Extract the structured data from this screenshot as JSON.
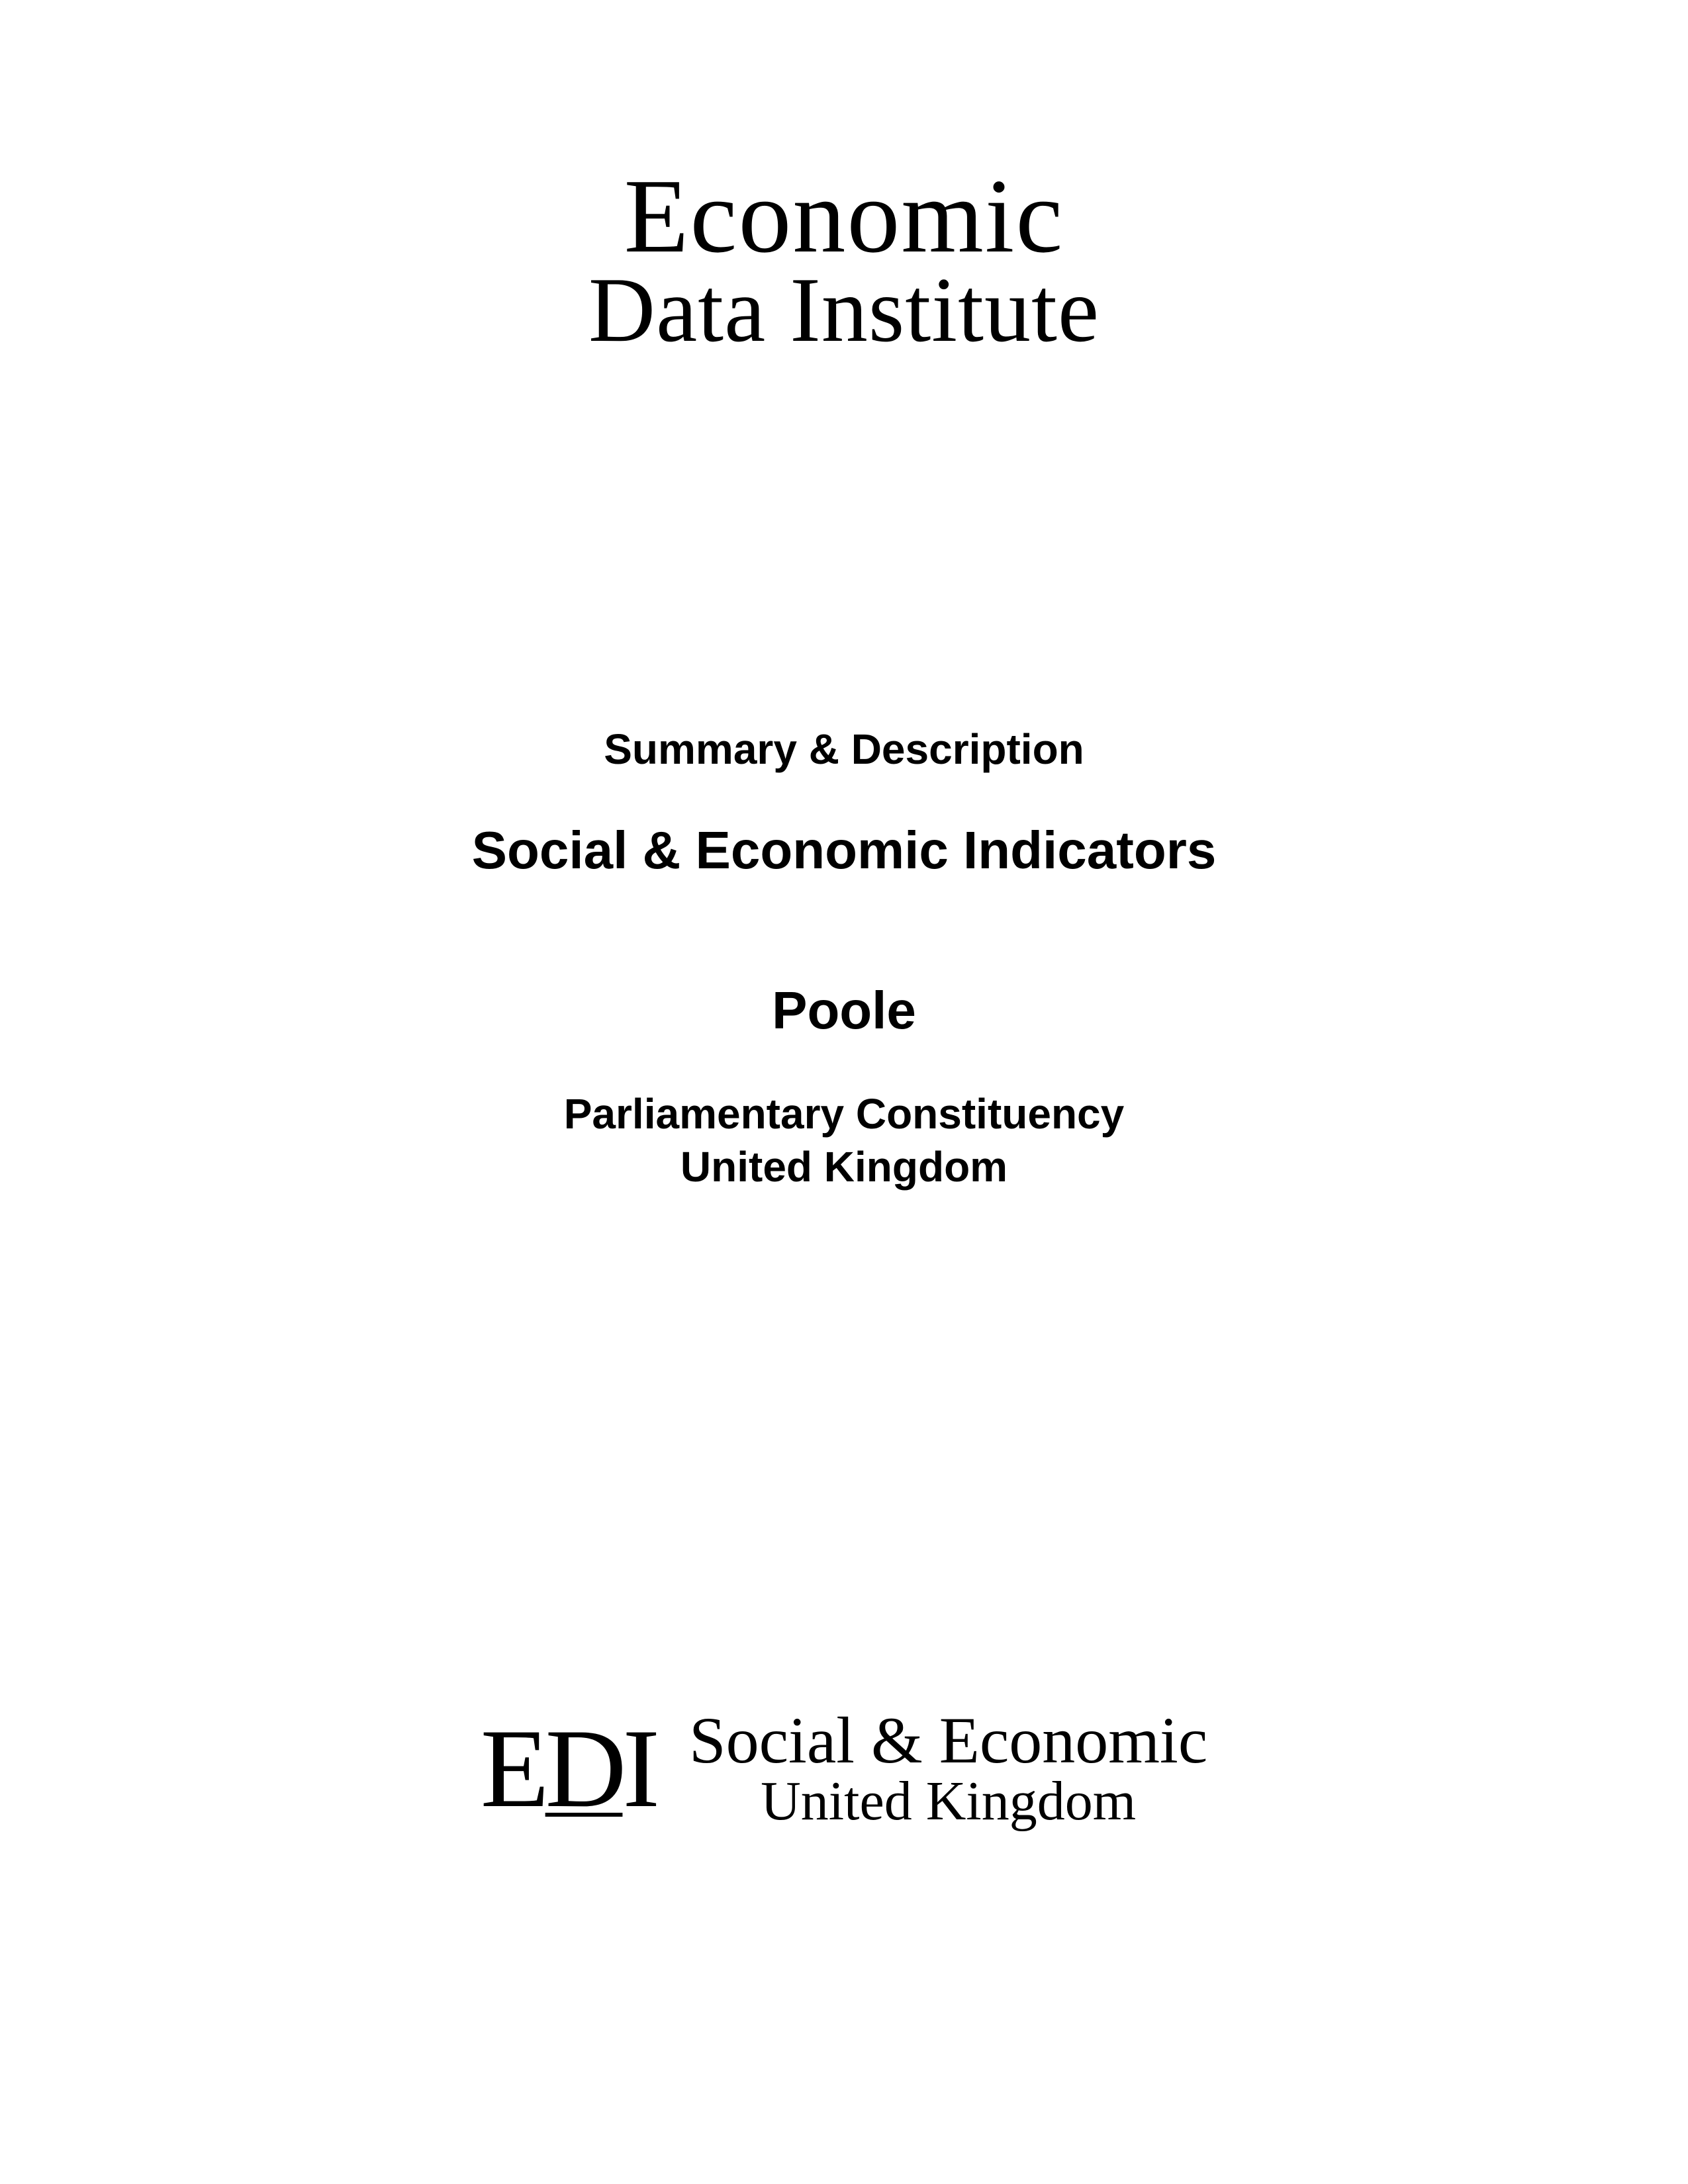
{
  "top_logo": {
    "line1": "Economic",
    "line2": "Data Institute"
  },
  "center": {
    "summary_desc": "Summary & Description",
    "main_title": "Social & Economic Indicators",
    "constituency": "Poole",
    "subtitle_line1": "Parliamentary Constituency",
    "subtitle_line2": "United Kingdom"
  },
  "bottom_logo": {
    "mark_e": "E",
    "mark_d": "D",
    "mark_i": "I",
    "right_line1": "Social & Economic",
    "right_line2": "United Kingdom"
  },
  "colors": {
    "background": "#ffffff",
    "text": "#000000"
  }
}
